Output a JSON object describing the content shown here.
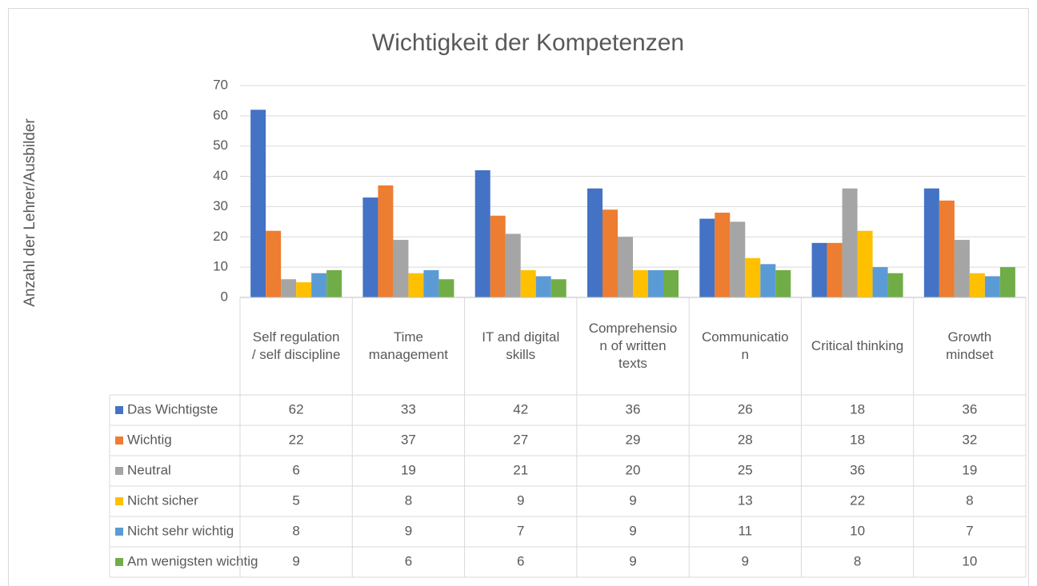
{
  "chart_data": {
    "type": "bar",
    "title": "Wichtigkeit der Kompetenzen",
    "y_label": "Anzahl der Lehrer/Ausbilder",
    "categories": [
      "Self regulation / self discipline",
      "Time management",
      "IT and digital skills",
      "Comprehension of written texts",
      "Communication",
      "Critical thinking",
      "Growth mindset"
    ],
    "series": [
      {
        "name": "Das Wichtigste",
        "color": "#4472c4",
        "values": [
          62,
          33,
          42,
          36,
          26,
          18,
          36
        ]
      },
      {
        "name": "Wichtig",
        "color": "#ed7d31",
        "values": [
          22,
          37,
          27,
          29,
          28,
          18,
          32
        ]
      },
      {
        "name": "Neutral",
        "color": "#a5a5a5",
        "values": [
          6,
          19,
          21,
          20,
          25,
          36,
          19
        ]
      },
      {
        "name": "Nicht sicher",
        "color": "#ffc000",
        "values": [
          5,
          8,
          9,
          9,
          13,
          22,
          8
        ]
      },
      {
        "name": "Nicht sehr wichtig",
        "color": "#5b9bd5",
        "values": [
          8,
          9,
          7,
          9,
          11,
          10,
          7
        ]
      },
      {
        "name": "Am wenigsten wichtig",
        "color": "#70ad47",
        "values": [
          9,
          6,
          6,
          9,
          9,
          8,
          10
        ]
      }
    ],
    "ylim": [
      0,
      70
    ],
    "yticks": [
      0,
      10,
      20,
      30,
      40,
      50,
      60,
      70
    ],
    "grid": true,
    "data_table": true
  }
}
